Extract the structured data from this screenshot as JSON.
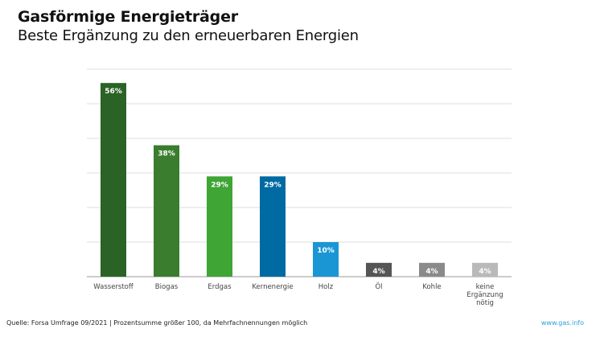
{
  "header": {
    "title": "Gasförmige Energieträger",
    "subtitle": "Beste Ergänzung zu den erneuerbaren Energien"
  },
  "footer": {
    "source": "Quelle: Forsa Umfrage 09/2021  | Prozentsumme größer 100, da Mehrfachnennungen möglich",
    "brand": "www.gas.info"
  },
  "chart_data": {
    "type": "bar",
    "categories": [
      "Wasserstoff",
      "Biogas",
      "Erdgas",
      "Kernenergie",
      "Holz",
      "Öl",
      "Kohle",
      "keine Ergänzung nötig"
    ],
    "values": [
      56,
      38,
      29,
      29,
      10,
      4,
      4,
      4
    ],
    "value_labels": [
      "56%",
      "38%",
      "29%",
      "29%",
      "10%",
      "4%",
      "4%",
      "4%"
    ],
    "colors": [
      "#2a6325",
      "#3a7d2e",
      "#3fa535",
      "#006aa3",
      "#1a96d4",
      "#555555",
      "#8a8a8a",
      "#b9b9b9"
    ],
    "ylim": [
      0,
      60
    ],
    "grid": true,
    "ytick_step": 10
  }
}
